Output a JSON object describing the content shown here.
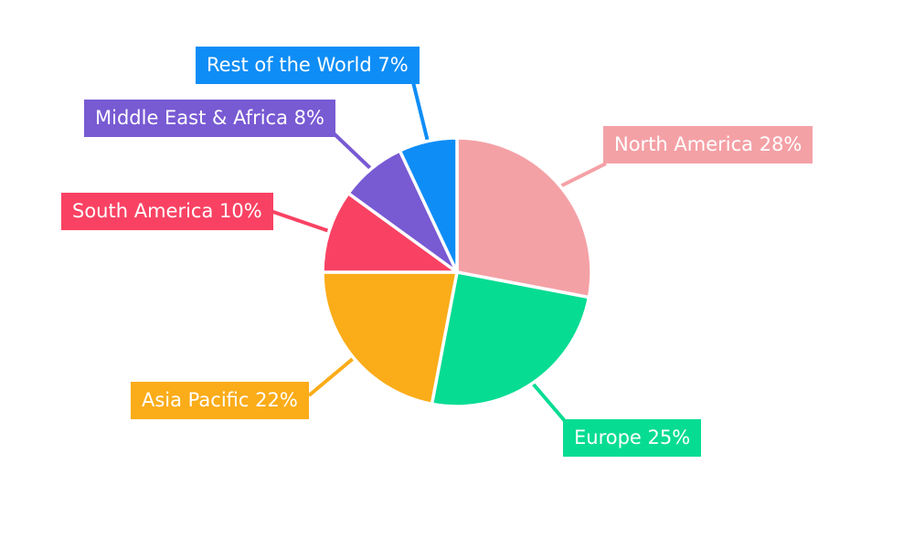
{
  "chart_data": {
    "type": "pie",
    "title": "",
    "categories": [
      "North America",
      "Europe",
      "Asia Pacific",
      "South America",
      "Middle East & Africa",
      "Rest of the World"
    ],
    "values": [
      28,
      25,
      22,
      10,
      8,
      7
    ],
    "unit": "%",
    "colors": [
      "#F4A1A6",
      "#07DC93",
      "#FBAC19",
      "#F94263",
      "#785AD3",
      "#0F8DF6"
    ],
    "start_angle_deg": 0,
    "direction": "clockwise",
    "slice_border_color": "#FFFFFF",
    "label_text_color": "#FFFFFF",
    "background": "#FFFFFF",
    "legend_position": "none",
    "callouts": [
      {
        "text": "North America 28%"
      },
      {
        "text": "Europe 25%"
      },
      {
        "text": "Asia Pacific 22%"
      },
      {
        "text": "South America 10%"
      },
      {
        "text": "Middle East & Africa 8%"
      },
      {
        "text": "Rest of the World 7%"
      }
    ]
  }
}
